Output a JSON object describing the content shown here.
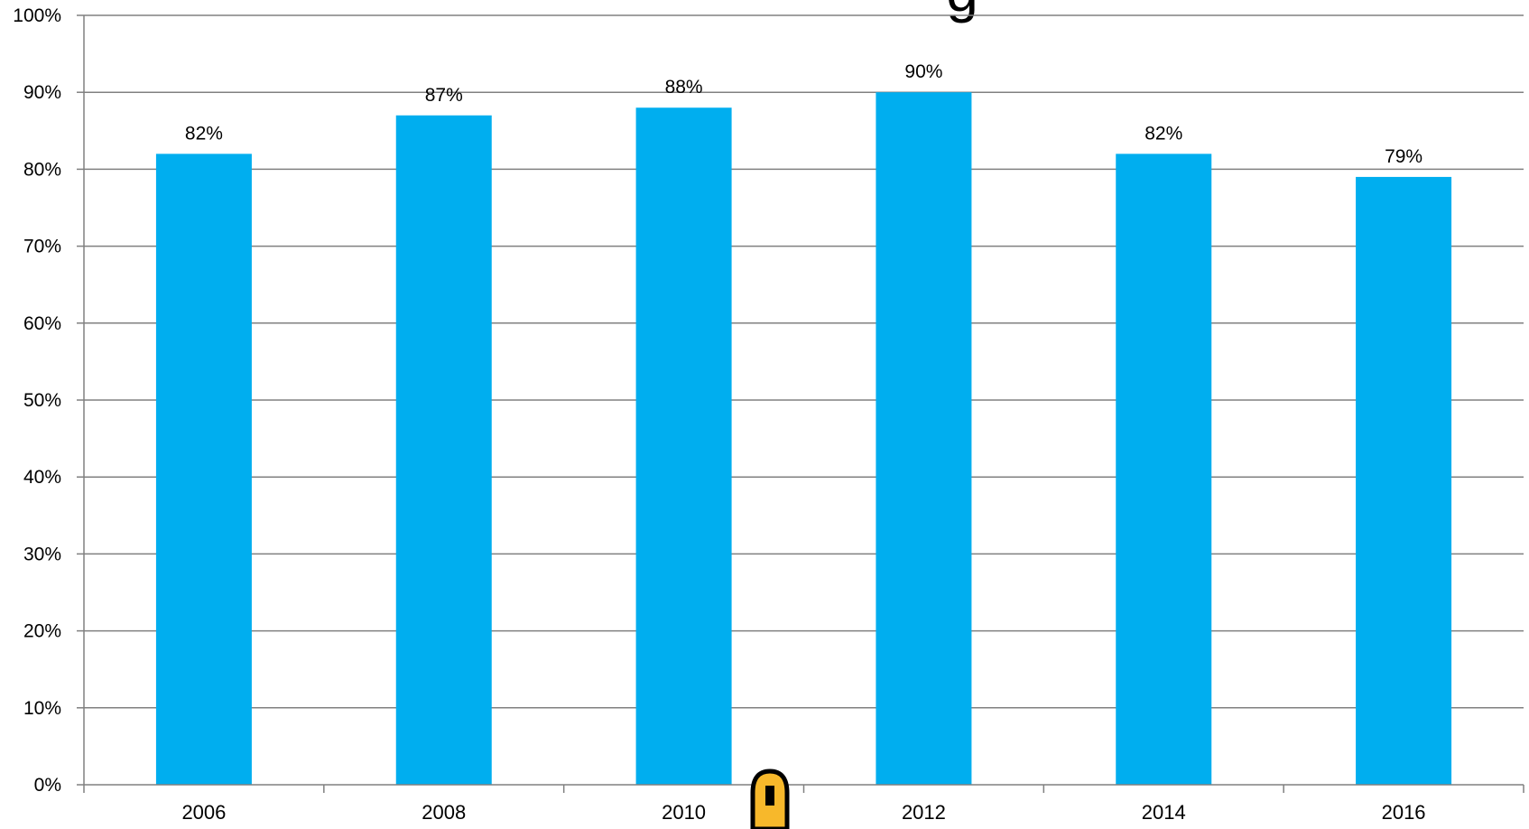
{
  "chart_data": {
    "type": "bar",
    "title_fragment": "g",
    "categories": [
      "2006",
      "2008",
      "2010",
      "2012",
      "2014",
      "2016"
    ],
    "values": [
      82,
      87,
      88,
      90,
      82,
      79
    ],
    "data_labels": [
      "82%",
      "87%",
      "88%",
      "90%",
      "82%",
      "79%"
    ],
    "ylim": [
      0,
      100
    ],
    "yticks": [
      0,
      10,
      20,
      30,
      40,
      50,
      60,
      70,
      80,
      90,
      100
    ],
    "ytick_labels": [
      "0%",
      "10%",
      "20%",
      "30%",
      "40%",
      "50%",
      "60%",
      "70%",
      "80%",
      "90%",
      "100%"
    ],
    "grid": true,
    "legend": "none",
    "bar_color": "#00AEEF",
    "grid_color": "#808080"
  },
  "overlay": {
    "icon": "lock-icon",
    "icon_color": "#F7B82B"
  }
}
